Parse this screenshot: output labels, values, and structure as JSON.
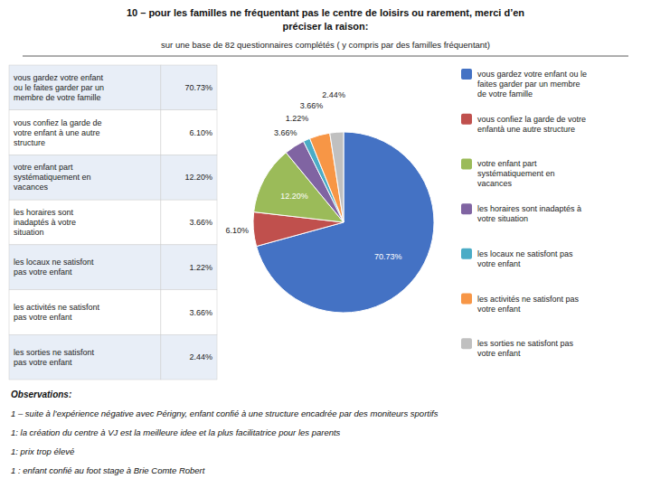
{
  "chart_data": {
    "type": "pie",
    "title": "10 – pour les familles ne fréquentant pas le centre de loisirs ou rarement, merci d’en\npréciser la raison:",
    "subtitle": "sur une base de 82 questionnaires complétés ( y compris par des familles fréquentant)",
    "categories": [
      "vous gardez votre enfant ou le\nfaites garder par un membre\nde votre famille",
      "vous confiez la garde de votre\nenfantà une autre structure",
      "votre enfant part\nsystématiquement en\nvacances",
      "les horaires sont inadaptés à\nvotre situation",
      "les locaux ne satisfont pas\nvotre enfant",
      "les activités ne satisfont pas\nvotre enfant",
      "les sorties ne satisfont pas\nvotre enfant"
    ],
    "values": [
      70.73,
      6.1,
      12.2,
      3.66,
      1.22,
      3.66,
      2.44
    ],
    "value_labels": [
      "70.73%",
      "6.10%",
      "12.20%",
      "3.66%",
      "1.22%",
      "3.66%",
      "2.44%"
    ],
    "colors": [
      "#4472C4",
      "#C0504D",
      "#9BBB59",
      "#8064A2",
      "#4BACC6",
      "#F79646",
      "#C0C0C0"
    ],
    "data_labels": true,
    "legend": "right",
    "table": {
      "rows": [
        [
          "vous gardez votre enfant\nou le faites garder par un\nmembre de votre famille",
          "70.73%"
        ],
        [
          "vous confiez la garde de\nvotre enfant à une autre\nstructure",
          "6.10%"
        ],
        [
          "votre enfant part\nsystématiquement en\nvacances",
          "12.20%"
        ],
        [
          "les horaires sont\ninadaptés à votre\nsituation",
          "3.66%"
        ],
        [
          "les locaux ne satisfont\npas votre enfant",
          "1.22%"
        ],
        [
          "les activités ne satisfont\npas votre enfant",
          "3.66%"
        ],
        [
          "les sorties ne satisfont\npas votre enfant",
          "2.44%"
        ]
      ]
    },
    "annotations": [
      "Observations:",
      "1 – suite à l’expérience négative avec Périgny, enfant confié à une structure encadrée par des moniteurs sportifs",
      "1: la création du centre à VJ est la meilleure idee et la plus facilitatrice pour les parents",
      "1: prix trop élevé",
      "1 : enfant confié au foot stage à Brie Comte Robert"
    ]
  }
}
